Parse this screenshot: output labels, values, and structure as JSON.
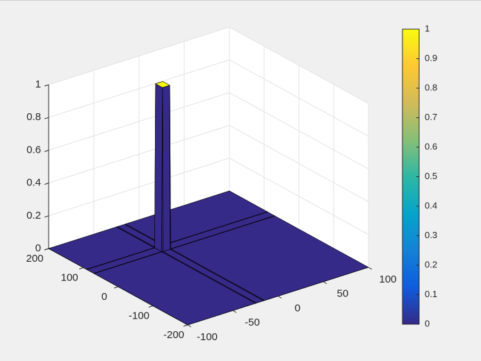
{
  "chart_data": {
    "type": "surface3d",
    "x": [
      -100,
      -25,
      -24,
      -16,
      -15,
      100
    ],
    "y": [
      -200,
      69,
      70,
      90,
      91,
      200
    ],
    "z": [
      [
        0,
        0,
        0,
        0,
        0,
        0
      ],
      [
        0,
        0,
        0,
        0,
        0,
        0
      ],
      [
        0,
        0,
        1,
        1,
        0,
        0
      ],
      [
        0,
        0,
        1,
        1,
        0,
        0
      ],
      [
        0,
        0,
        0,
        0,
        0,
        0
      ],
      [
        0,
        0,
        0,
        0,
        0,
        0
      ]
    ],
    "xlim": [
      -100,
      100
    ],
    "xticks": [
      -100,
      -50,
      0,
      50,
      100
    ],
    "ylim": [
      -200,
      200
    ],
    "yticks": [
      -200,
      -100,
      0,
      100,
      200
    ],
    "zlim": [
      0,
      1
    ],
    "zticks": [
      0,
      0.2,
      0.4,
      0.6,
      0.8,
      1
    ],
    "grid": true,
    "edgecolor": "#000000",
    "colormap": [
      "#352a87",
      "#0f5cdd",
      "#1481d6",
      "#06a4ca",
      "#2eb7a4",
      "#87bf77",
      "#d1bb59",
      "#fec832",
      "#f9fb0e"
    ],
    "clim": [
      0,
      1
    ],
    "colorbar_ticks": [
      0,
      0.1,
      0.2,
      0.3,
      0.4,
      0.5,
      0.6,
      0.7,
      0.8,
      0.9,
      1
    ]
  }
}
